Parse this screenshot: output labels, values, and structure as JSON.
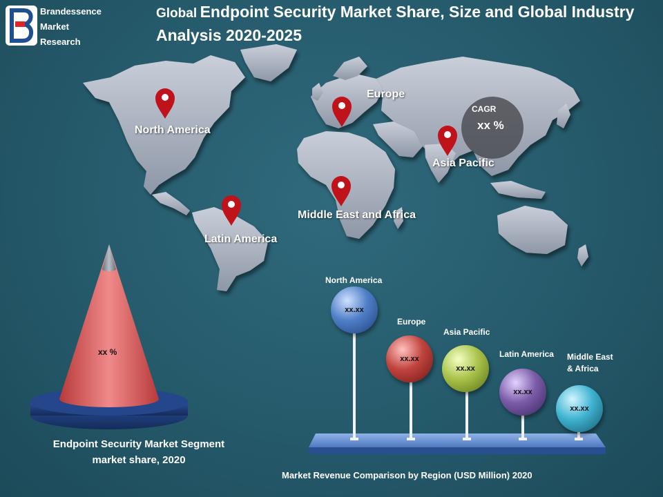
{
  "brand": {
    "logo_letter": "B",
    "lines": [
      "Brandessence",
      "Market",
      "Research"
    ]
  },
  "title": {
    "prefix": "Global",
    "main": "Endpoint Security Market Share, Size and Global Industry Analysis 2020-2025"
  },
  "map": {
    "regions": [
      {
        "label": "North America"
      },
      {
        "label": "Europe"
      },
      {
        "label": "Asia Pacific"
      },
      {
        "label": "Middle East and Africa"
      },
      {
        "label": "Latin America"
      }
    ],
    "cagr": {
      "label": "CAGR",
      "value": "xx %"
    }
  },
  "cone": {
    "value": "xx %",
    "caption_line1": "Endpoint Security Market Segment",
    "caption_line2": "market share, 2020"
  },
  "bubbles": {
    "title": "Market Revenue Comparison by Region (USD Million) 2020",
    "items": [
      {
        "label": "North America",
        "value": "xx.xx",
        "color": "#4f7fc7"
      },
      {
        "label": "Europe",
        "value": "xx.xx",
        "color": "#c0443f"
      },
      {
        "label": "Asia Pacific",
        "value": "xx.xx",
        "color": "#a9c24a"
      },
      {
        "label": "Latin America",
        "value": "xx.xx",
        "color": "#7b5ca8"
      },
      {
        "label_line1": "Middle East",
        "label_line2": "& Africa",
        "value": "xx.xx",
        "color": "#3fb3d1"
      }
    ]
  }
}
